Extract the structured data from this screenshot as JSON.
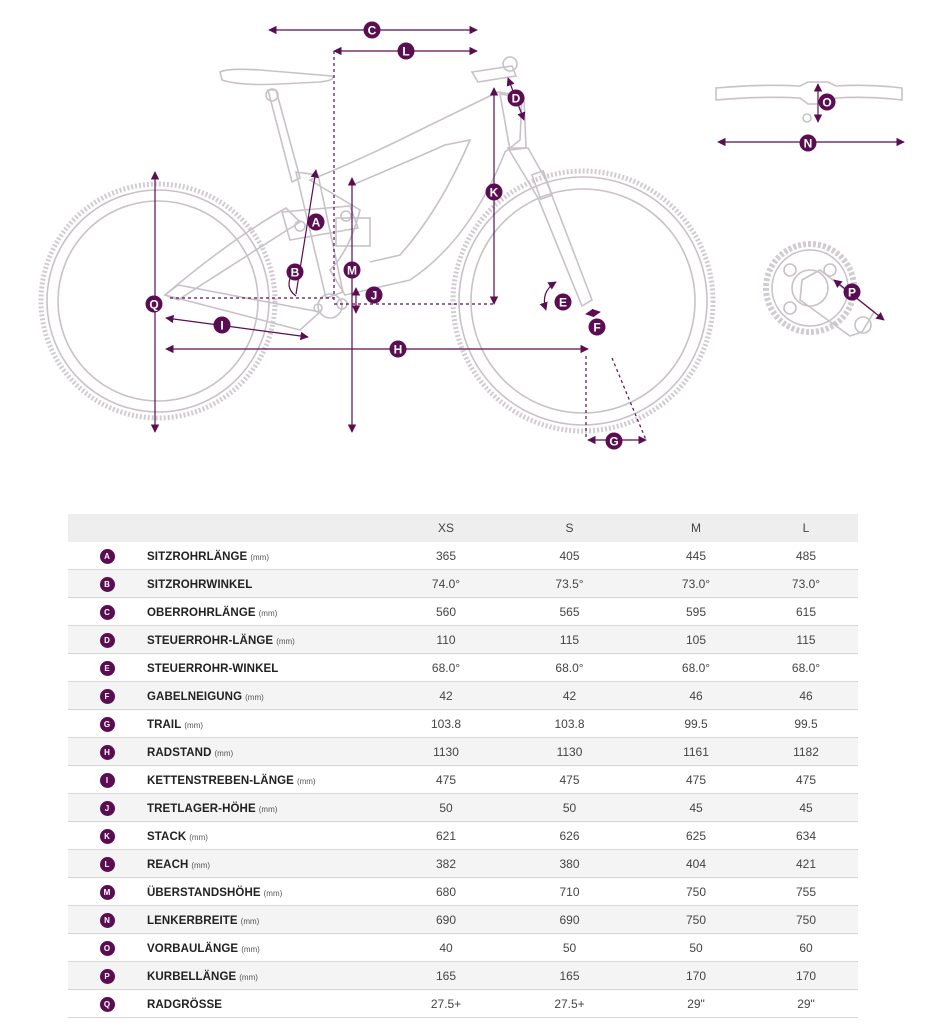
{
  "sizes": [
    "XS",
    "S",
    "M",
    "L"
  ],
  "diagram_labels": [
    "A",
    "B",
    "C",
    "D",
    "E",
    "F",
    "G",
    "H",
    "I",
    "J",
    "K",
    "L",
    "M",
    "N",
    "O",
    "P",
    "Q"
  ],
  "colors": {
    "accent": "#5b0d52",
    "frame_line": "#c9c1c8"
  },
  "rows": [
    {
      "letter": "A",
      "name": "SITZROHRLÄNGE",
      "unit": "(mm)",
      "values": [
        "365",
        "405",
        "445",
        "485"
      ]
    },
    {
      "letter": "B",
      "name": "SITZROHRWINKEL",
      "unit": "",
      "values": [
        "74.0°",
        "73.5°",
        "73.0°",
        "73.0°"
      ]
    },
    {
      "letter": "C",
      "name": "OBERROHRLÄNGE",
      "unit": "(mm)",
      "values": [
        "560",
        "565",
        "595",
        "615"
      ]
    },
    {
      "letter": "D",
      "name": "STEUERROHR-LÄNGE",
      "unit": "(mm)",
      "values": [
        "110",
        "115",
        "105",
        "115"
      ]
    },
    {
      "letter": "E",
      "name": "STEUERROHR-WINKEL",
      "unit": "",
      "values": [
        "68.0°",
        "68.0°",
        "68.0°",
        "68.0°"
      ]
    },
    {
      "letter": "F",
      "name": "GABELNEIGUNG",
      "unit": "(mm)",
      "values": [
        "42",
        "42",
        "46",
        "46"
      ]
    },
    {
      "letter": "G",
      "name": "TRAIL",
      "unit": "(mm)",
      "values": [
        "103.8",
        "103.8",
        "99.5",
        "99.5"
      ]
    },
    {
      "letter": "H",
      "name": "RADSTAND",
      "unit": "(mm)",
      "values": [
        "1130",
        "1130",
        "1161",
        "1182"
      ]
    },
    {
      "letter": "I",
      "name": "KETTENSTREBEN-LÄNGE",
      "unit": "(mm)",
      "values": [
        "475",
        "475",
        "475",
        "475"
      ]
    },
    {
      "letter": "J",
      "name": "TRETLAGER-HÖHE",
      "unit": "(mm)",
      "values": [
        "50",
        "50",
        "45",
        "45"
      ]
    },
    {
      "letter": "K",
      "name": "STACK",
      "unit": "(mm)",
      "values": [
        "621",
        "626",
        "625",
        "634"
      ]
    },
    {
      "letter": "L",
      "name": "REACH",
      "unit": "(mm)",
      "values": [
        "382",
        "380",
        "404",
        "421"
      ]
    },
    {
      "letter": "M",
      "name": "ÜBERSTANDSHÖHE",
      "unit": "(mm)",
      "values": [
        "680",
        "710",
        "750",
        "755"
      ]
    },
    {
      "letter": "N",
      "name": "LENKERBREITE",
      "unit": "(mm)",
      "values": [
        "690",
        "690",
        "750",
        "750"
      ]
    },
    {
      "letter": "O",
      "name": "VORBAULÄNGE",
      "unit": "(mm)",
      "values": [
        "40",
        "50",
        "50",
        "60"
      ]
    },
    {
      "letter": "P",
      "name": "KURBELLÄNGE",
      "unit": "(mm)",
      "values": [
        "165",
        "165",
        "170",
        "170"
      ]
    },
    {
      "letter": "Q",
      "name": "RADGRÖSSE",
      "unit": "",
      "values": [
        "27.5+",
        "27.5+",
        "29\"",
        "29\""
      ]
    }
  ]
}
